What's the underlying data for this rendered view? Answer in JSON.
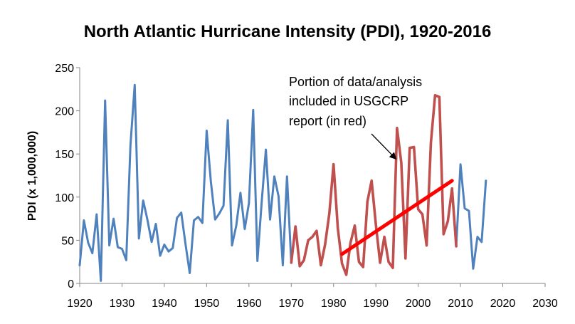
{
  "chart_data": {
    "type": "line",
    "title": "North Atlantic Hurricane Intensity (PDI), 1920-2016",
    "xlabel": "",
    "ylabel": "PDI (x 1,000,000)",
    "xlim": [
      1920,
      2030
    ],
    "ylim": [
      0,
      250
    ],
    "xticks": [
      1920,
      1930,
      1940,
      1950,
      1960,
      1970,
      1980,
      1990,
      2000,
      2010,
      2020,
      2030
    ],
    "yticks": [
      0,
      50,
      100,
      150,
      200,
      250
    ],
    "grid": false,
    "legend": "none",
    "colors": {
      "series_blue": "#4f81bd",
      "series_red": "#c0504d",
      "trend": "#ff0000"
    },
    "series": [
      {
        "name": "PDI 1920-2016",
        "color": "#4f81bd",
        "x": [
          1920,
          1921,
          1922,
          1923,
          1924,
          1925,
          1926,
          1927,
          1928,
          1929,
          1930,
          1931,
          1932,
          1933,
          1934,
          1935,
          1936,
          1937,
          1938,
          1939,
          1940,
          1941,
          1942,
          1943,
          1944,
          1945,
          1946,
          1947,
          1948,
          1949,
          1950,
          1951,
          1952,
          1953,
          1954,
          1955,
          1956,
          1957,
          1958,
          1959,
          1960,
          1961,
          1962,
          1963,
          1964,
          1965,
          1966,
          1967,
          1968,
          1969,
          1970,
          1971,
          1972,
          1973,
          1974,
          1975,
          1976,
          1977,
          1978,
          1979,
          1980,
          1981,
          1982,
          1983,
          1984,
          1985,
          1986,
          1987,
          1988,
          1989,
          1990,
          1991,
          1992,
          1993,
          1994,
          1995,
          1996,
          1997,
          1998,
          1999,
          2000,
          2001,
          2002,
          2003,
          2004,
          2005,
          2006,
          2007,
          2008,
          2009,
          2010,
          2011,
          2012,
          2013,
          2014,
          2015,
          2016
        ],
        "values": [
          21,
          73,
          47,
          35,
          80,
          3,
          212,
          44,
          75,
          42,
          40,
          27,
          160,
          230,
          52,
          96,
          74,
          48,
          69,
          32,
          45,
          37,
          41,
          76,
          82,
          46,
          12,
          73,
          77,
          70,
          177,
          118,
          74,
          81,
          90,
          189,
          44,
          67,
          105,
          63,
          93,
          201,
          26,
          94,
          155,
          74,
          124,
          101,
          21,
          124,
          24,
          66,
          20,
          27,
          50,
          54,
          61,
          21,
          45,
          81,
          138,
          64,
          23,
          10,
          47,
          67,
          25,
          19,
          95,
          119,
          68,
          24,
          54,
          25,
          18,
          180,
          140,
          29,
          157,
          158,
          86,
          80,
          44,
          163,
          218,
          216,
          57,
          72,
          110,
          43,
          138,
          87,
          84,
          17,
          54,
          48,
          119
        ]
      },
      {
        "name": "Portion included in USGCRP report",
        "color": "#c0504d",
        "x": [
          1970,
          1971,
          1972,
          1973,
          1974,
          1975,
          1976,
          1977,
          1978,
          1979,
          1980,
          1981,
          1982,
          1983,
          1984,
          1985,
          1986,
          1987,
          1988,
          1989,
          1990,
          1991,
          1992,
          1993,
          1994,
          1995,
          1996,
          1997,
          1998,
          1999,
          2000,
          2001,
          2002,
          2003,
          2004,
          2005,
          2006,
          2007,
          2008,
          2009
        ],
        "values": [
          24,
          66,
          20,
          27,
          50,
          54,
          61,
          21,
          45,
          81,
          138,
          64,
          23,
          10,
          47,
          67,
          25,
          19,
          95,
          119,
          68,
          24,
          54,
          25,
          18,
          180,
          140,
          29,
          157,
          158,
          86,
          80,
          44,
          163,
          218,
          216,
          57,
          72,
          110,
          43
        ]
      }
    ],
    "trendline": {
      "name": "Linear trend",
      "color": "#ff0000",
      "x": [
        1982,
        2008
      ],
      "values": [
        34,
        119
      ]
    },
    "annotation": {
      "lines": [
        "Portion of data/analysis",
        "included in USGCRP",
        "report (in red)"
      ],
      "arrow_target": {
        "x": 1995,
        "y": 138
      }
    }
  }
}
